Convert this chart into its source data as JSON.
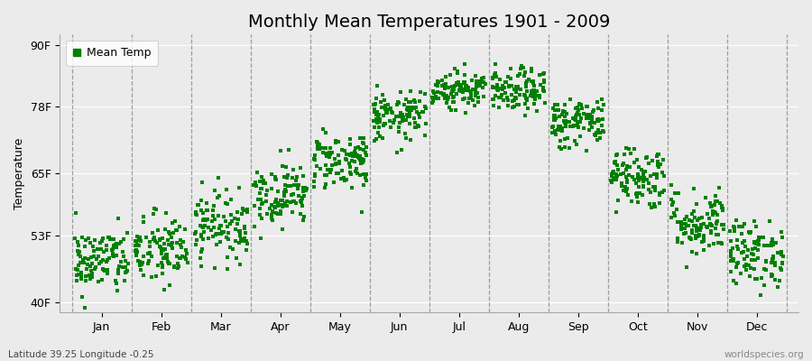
{
  "title": "Monthly Mean Temperatures 1901 - 2009",
  "ylabel": "Temperature",
  "lat_lon_label": "Latitude 39.25 Longitude -0.25",
  "watermark": "worldspecies.org",
  "yticks": [
    40,
    53,
    65,
    78,
    90
  ],
  "ytick_labels": [
    "40F",
    "53F",
    "65F",
    "78F",
    "90F"
  ],
  "ylim": [
    38,
    92
  ],
  "months": [
    "Jan",
    "Feb",
    "Mar",
    "Apr",
    "May",
    "Jun",
    "Jul",
    "Aug",
    "Sep",
    "Oct",
    "Nov",
    "Dec"
  ],
  "mean_temps_f": [
    48.0,
    50.0,
    55.0,
    61.0,
    67.5,
    76.0,
    81.5,
    81.0,
    75.0,
    64.5,
    55.5,
    49.5
  ],
  "std_temps_f": [
    3.2,
    3.5,
    3.2,
    3.0,
    2.8,
    2.3,
    1.8,
    2.0,
    2.5,
    3.0,
    3.2,
    3.2
  ],
  "n_years": 109,
  "marker_color": "#008000",
  "marker_size": 7,
  "background_color": "#ebebeb",
  "plot_bg_color": "#ebebeb",
  "title_fontsize": 14,
  "label_fontsize": 9,
  "tick_fontsize": 9
}
